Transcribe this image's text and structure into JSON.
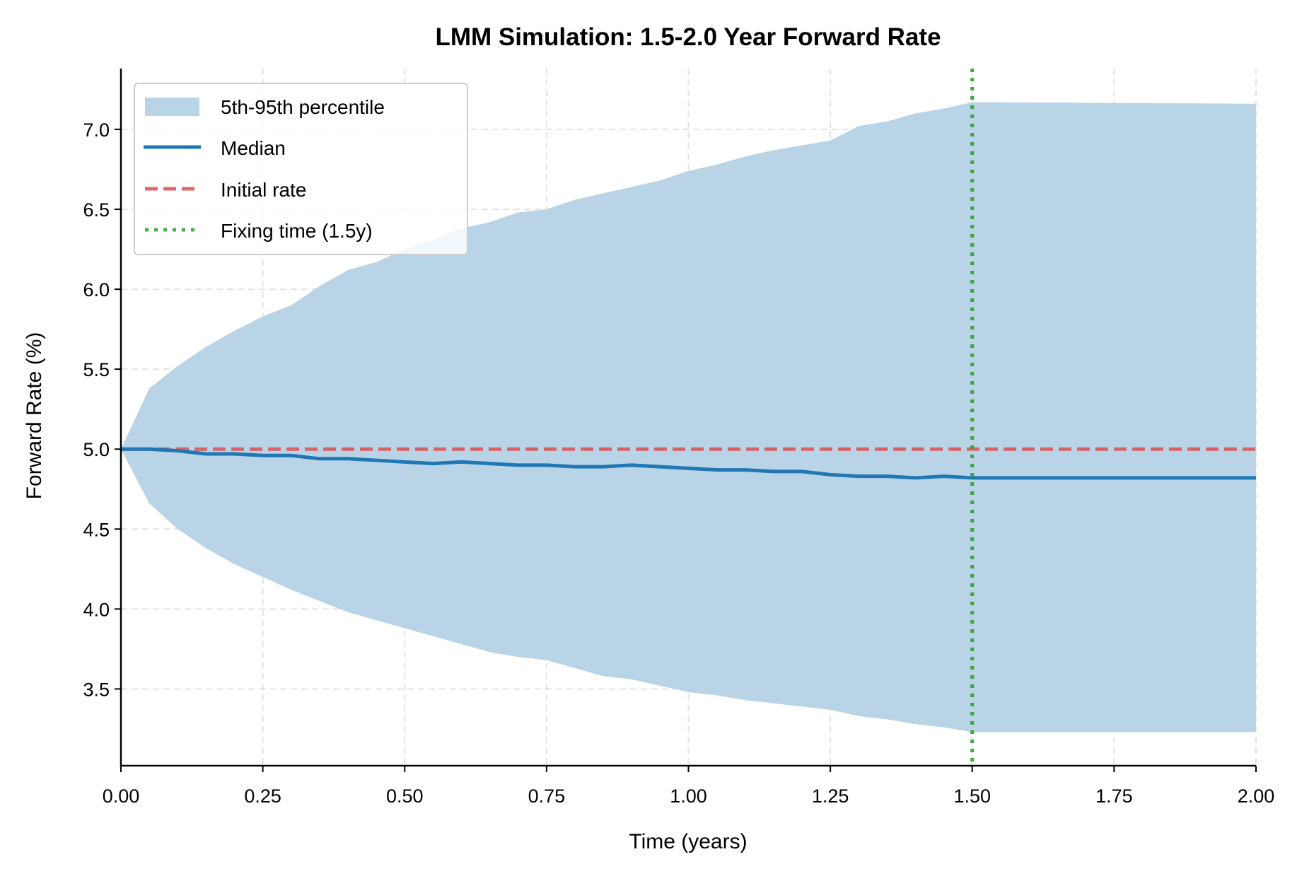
{
  "chart_data": {
    "type": "area",
    "title": "LMM Simulation: 1.5-2.0 Year Forward Rate",
    "xlabel": "Time (years)",
    "ylabel": "Forward Rate (%)",
    "xlim": [
      0,
      2.0
    ],
    "ylim": [
      3.02,
      7.38
    ],
    "grid": true,
    "legend_position": "top-left",
    "x_ticks": [
      "0.00",
      "0.25",
      "0.50",
      "0.75",
      "1.00",
      "1.25",
      "1.50",
      "1.75",
      "2.00"
    ],
    "y_ticks": [
      "3.5",
      "4.0",
      "4.5",
      "5.0",
      "5.5",
      "6.0",
      "6.5",
      "7.0"
    ],
    "x": [
      0,
      0.05,
      0.1,
      0.15,
      0.2,
      0.25,
      0.3,
      0.35,
      0.4,
      0.45,
      0.5,
      0.55,
      0.6,
      0.65,
      0.7,
      0.75,
      0.8,
      0.85,
      0.9,
      0.95,
      1.0,
      1.05,
      1.1,
      1.15,
      1.2,
      1.25,
      1.3,
      1.35,
      1.4,
      1.45,
      1.5,
      2.0
    ],
    "series": [
      {
        "name": "5th-95th percentile",
        "kind": "band",
        "color": "#b9d4e7",
        "upper": [
          5.0,
          5.38,
          5.52,
          5.64,
          5.74,
          5.83,
          5.9,
          6.02,
          6.12,
          6.17,
          6.25,
          6.31,
          6.38,
          6.42,
          6.48,
          6.5,
          6.56,
          6.6,
          6.64,
          6.68,
          6.74,
          6.78,
          6.83,
          6.87,
          6.9,
          6.93,
          7.02,
          7.05,
          7.1,
          7.13,
          7.17,
          7.16
        ],
        "lower": [
          5.0,
          4.66,
          4.5,
          4.38,
          4.28,
          4.2,
          4.12,
          4.05,
          3.98,
          3.93,
          3.88,
          3.83,
          3.78,
          3.73,
          3.7,
          3.68,
          3.63,
          3.58,
          3.56,
          3.52,
          3.48,
          3.46,
          3.43,
          3.41,
          3.39,
          3.37,
          3.33,
          3.31,
          3.28,
          3.26,
          3.23,
          3.23
        ]
      },
      {
        "name": "Median",
        "kind": "line",
        "color": "#1f77b4",
        "values": [
          5.0,
          5.0,
          4.99,
          4.97,
          4.97,
          4.96,
          4.96,
          4.94,
          4.94,
          4.93,
          4.92,
          4.91,
          4.92,
          4.91,
          4.9,
          4.9,
          4.89,
          4.89,
          4.9,
          4.89,
          4.88,
          4.87,
          4.87,
          4.86,
          4.86,
          4.84,
          4.83,
          4.83,
          4.82,
          4.83,
          4.82,
          4.82
        ]
      },
      {
        "name": "Initial rate",
        "kind": "hline",
        "color": "#d9595c",
        "value": 5.0
      },
      {
        "name": "Fixing time (1.5y)",
        "kind": "vline",
        "color": "#2ca02c",
        "value": 1.5
      }
    ]
  }
}
